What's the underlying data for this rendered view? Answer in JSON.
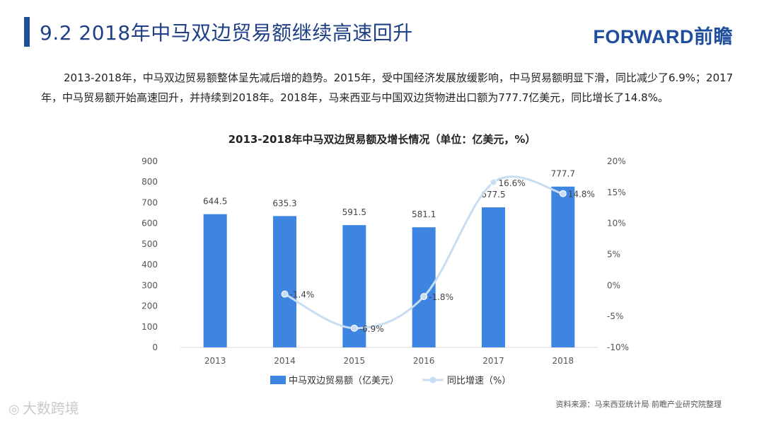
{
  "header": {
    "title": "9.2 2018年中马双边贸易额继续高速回升",
    "logo": "FORWARD前瞻"
  },
  "intro": {
    "line1": "2013-2018年，中马双边贸易额整体呈先减后增的趋势。2015年，受中国经济发展放缓影响，中马贸易额明显下滑，同比减少了6.9%；2017年，中马贸易额开始高速回升，并持续到2018年。2018年，马来西亚与中国双边货物进出口额为777.7亿美元，同比增长了14.8%。"
  },
  "chart_data": {
    "type": "bar",
    "title": "2013-2018年中马双边贸易额及增长情况（单位：亿美元，%）",
    "categories": [
      "2013",
      "2014",
      "2015",
      "2016",
      "2017",
      "2018"
    ],
    "series": [
      {
        "name": "中马双边贸易额（亿美元）",
        "type": "bar",
        "axis": "left",
        "color": "#3d85e0",
        "values": [
          644.5,
          635.3,
          591.5,
          581.1,
          677.5,
          777.7
        ],
        "labels": [
          "644.5",
          "635.3",
          "591.5",
          "581.1",
          "677.5",
          "777.7"
        ]
      },
      {
        "name": "同比增速（%）",
        "type": "line",
        "axis": "right",
        "color": "#c9ddf2",
        "values": [
          null,
          -1.4,
          -6.9,
          -1.8,
          16.6,
          14.8
        ],
        "labels": [
          "",
          "-1.4%",
          "-6.9%",
          "-1.8%",
          "16.6%",
          "14.8%"
        ]
      }
    ],
    "left_axis": {
      "ylim": [
        0,
        900
      ],
      "ticks": [
        "0",
        "100",
        "200",
        "300",
        "400",
        "500",
        "600",
        "700",
        "800",
        "900"
      ]
    },
    "right_axis": {
      "ylim": [
        -10,
        20
      ],
      "ticks": [
        "-10%",
        "-5%",
        "0%",
        "5%",
        "10%",
        "15%",
        "20%"
      ]
    },
    "grid": false,
    "legend_position": "bottom"
  },
  "footer": {
    "source": "资料来源：马来西亚统计局 前瞻产业研究院整理",
    "watermark": "大数跨境"
  }
}
